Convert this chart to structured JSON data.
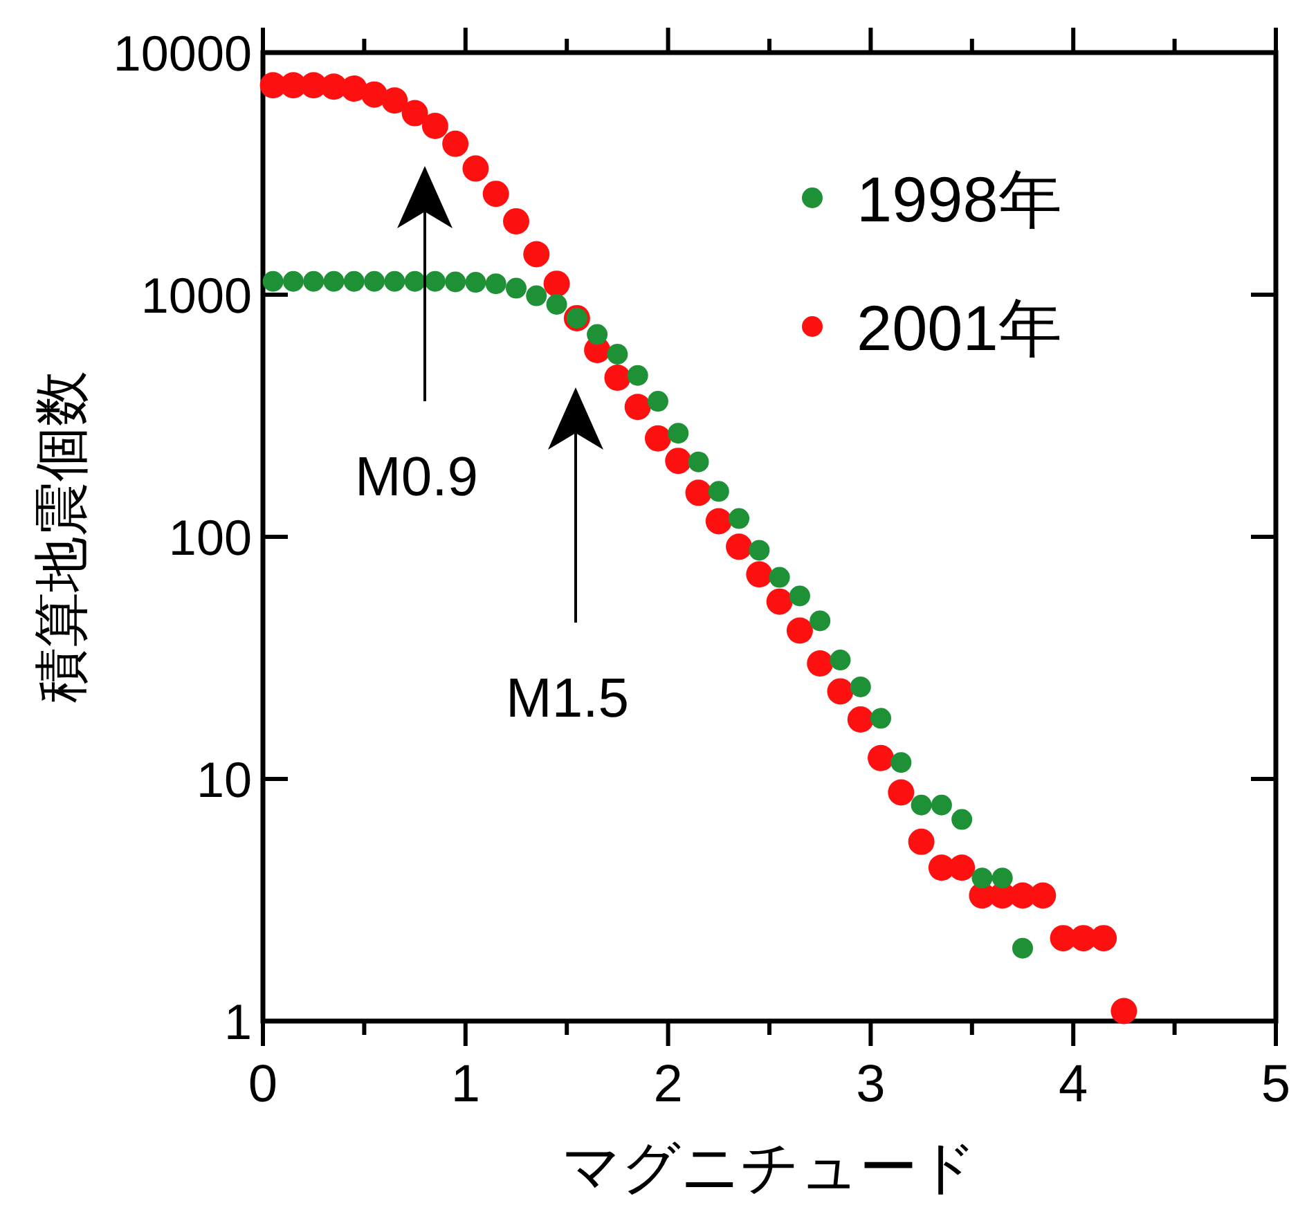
{
  "chart_data": {
    "type": "scatter",
    "xlabel": "マグニチュード",
    "ylabel": "積算地震個数",
    "log": "y",
    "xlim": [
      0,
      5
    ],
    "ylim": [
      1,
      10000
    ],
    "xticks": [
      0,
      {
        "value": 0.5,
        "label": null
      },
      1,
      {
        "value": 1.5,
        "label": null
      },
      2,
      {
        "value": 2.5,
        "label": null
      },
      3,
      {
        "value": 3.5,
        "label": null
      },
      4,
      {
        "value": 4.5,
        "label": null
      },
      5
    ],
    "yticks": [
      1,
      10,
      100,
      1000,
      10000
    ],
    "grid": false,
    "legend": "top right",
    "marker": "circle",
    "annotations": [
      "M0.9",
      "M1.5"
    ],
    "series": [
      {
        "name": "1998年",
        "color": "#1e9136",
        "x": [
          0.05,
          0.15,
          0.25,
          0.35,
          0.45,
          0.55,
          0.65,
          0.75,
          0.85,
          0.95,
          1.05,
          1.15,
          1.25,
          1.35,
          1.45,
          1.55,
          1.65,
          1.75,
          1.85,
          1.95,
          2.05,
          2.15,
          2.25,
          2.35,
          2.45,
          2.55,
          2.65,
          2.75,
          2.85,
          2.95,
          3.05,
          3.15,
          3.25,
          3.35,
          3.45,
          3.55,
          3.65,
          3.75
        ],
        "values": [
          1135,
          1135,
          1135,
          1135,
          1135,
          1135,
          1135,
          1135,
          1135,
          1130,
          1125,
          1110,
          1064,
          990,
          912,
          800,
          685,
          568,
          464,
          363,
          268,
          204,
          154,
          119,
          88,
          68,
          57,
          45,
          31,
          24,
          17.8,
          11.7,
          7.8,
          7.8,
          6.8,
          3.9,
          3.9,
          2.0
        ]
      },
      {
        "name": "2001年",
        "color": "#ff1010",
        "x": [
          0.05,
          0.15,
          0.25,
          0.35,
          0.45,
          0.55,
          0.65,
          0.75,
          0.85,
          0.95,
          1.05,
          1.15,
          1.25,
          1.35,
          1.45,
          1.55,
          1.65,
          1.75,
          1.85,
          1.95,
          2.05,
          2.15,
          2.25,
          2.35,
          2.45,
          2.55,
          2.65,
          2.75,
          2.85,
          2.95,
          3.05,
          3.15,
          3.25,
          3.35,
          3.45,
          3.55,
          3.65,
          3.75,
          3.85,
          3.95,
          4.05,
          4.15,
          4.25
        ],
        "values": [
          7330,
          7330,
          7330,
          7230,
          7100,
          6710,
          6340,
          5620,
          4980,
          4200,
          3320,
          2610,
          2010,
          1470,
          1110,
          800,
          591,
          454,
          344,
          255,
          206,
          152,
          116,
          91,
          70,
          54,
          41,
          30,
          23,
          17.6,
          12.2,
          8.8,
          5.5,
          4.3,
          4.3,
          3.3,
          3.3,
          3.3,
          3.3,
          2.2,
          2.2,
          2.2,
          1.1
        ]
      }
    ]
  }
}
